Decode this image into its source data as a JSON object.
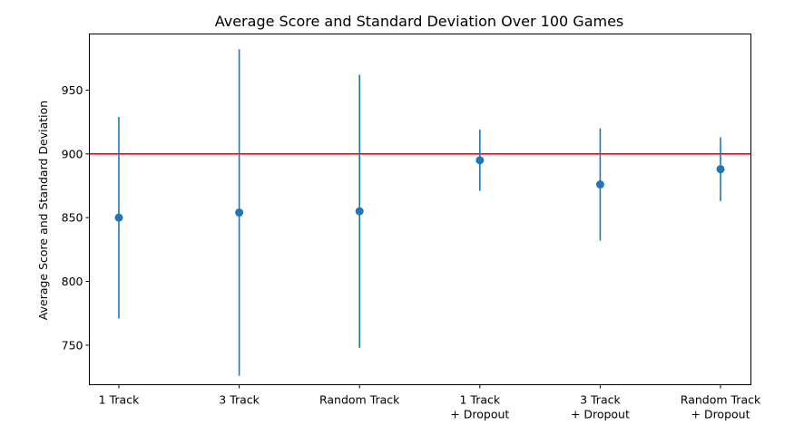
{
  "chart_data": {
    "type": "errorbar",
    "title": "Average Score and Standard Deviation Over 100 Games",
    "xlabel": "",
    "ylabel": "Average Score and Standard Deviation",
    "categories": [
      [
        "1 Track"
      ],
      [
        "3 Track"
      ],
      [
        "Random Track"
      ],
      [
        "1 Track",
        "+ Dropout"
      ],
      [
        "3 Track",
        "+ Dropout"
      ],
      [
        "Random Track",
        "+ Dropout"
      ]
    ],
    "series": [
      {
        "means": [
          850,
          854,
          855,
          895,
          876,
          888
        ],
        "stds": [
          79,
          128,
          107,
          24,
          44,
          25
        ],
        "color": "#1f77b4"
      }
    ],
    "reference_line": {
      "y": 900,
      "color": "#ff0000"
    },
    "ylim": [
      719,
      994
    ],
    "yticks": [
      750,
      800,
      850,
      900,
      950
    ],
    "grid": false,
    "legend": "none"
  }
}
